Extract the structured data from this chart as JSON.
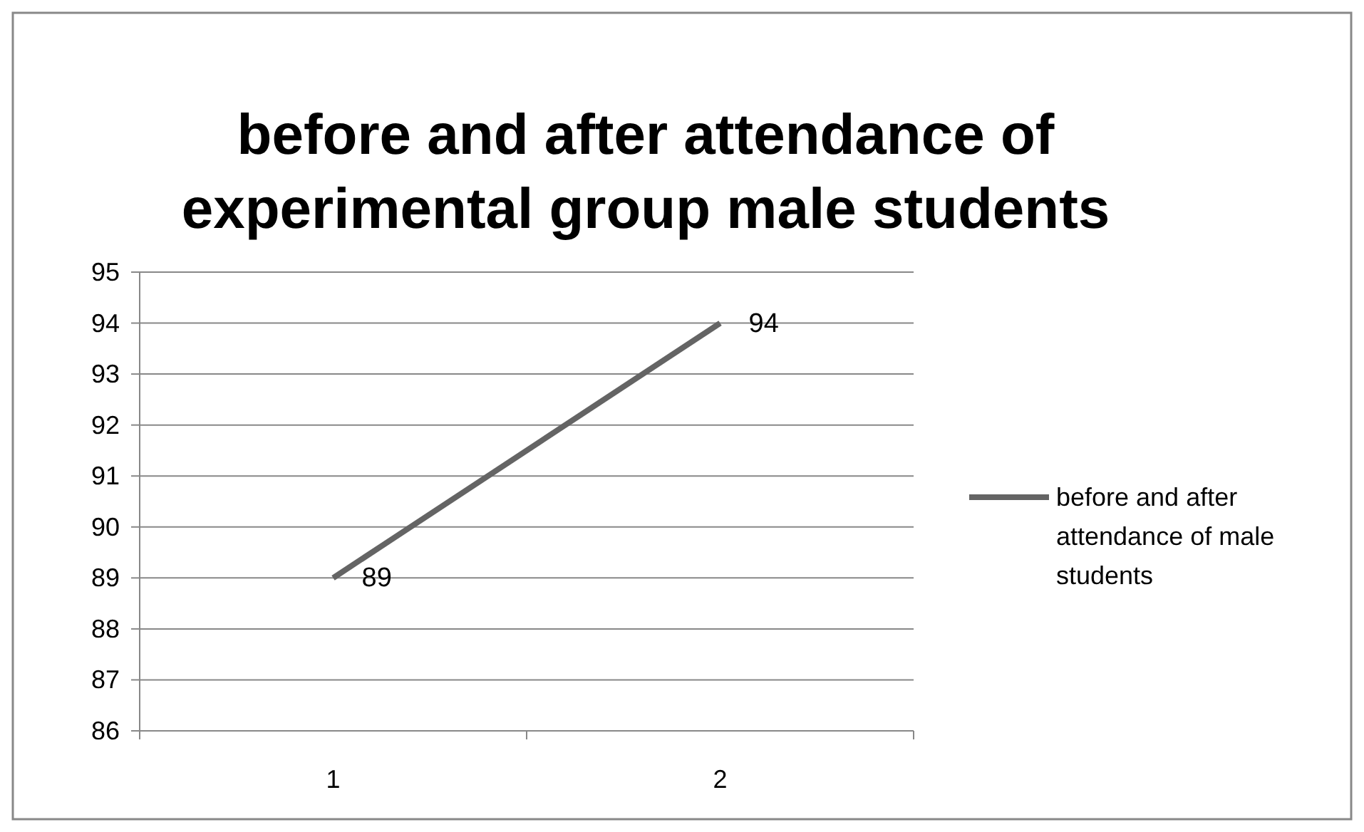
{
  "chart_data": {
    "type": "line",
    "title": "before and after attendance of experimental group male students",
    "categories": [
      "1",
      "2"
    ],
    "series": [
      {
        "name": "before and after attendance of male students",
        "color": "#646464",
        "values": [
          89,
          94
        ]
      }
    ],
    "ylim": [
      86,
      95
    ],
    "yticks": [
      86,
      87,
      88,
      89,
      90,
      91,
      92,
      93,
      94,
      95
    ],
    "grid": "y",
    "legend": "right",
    "data_labels": true,
    "marker": "none",
    "line_style": "solid"
  }
}
